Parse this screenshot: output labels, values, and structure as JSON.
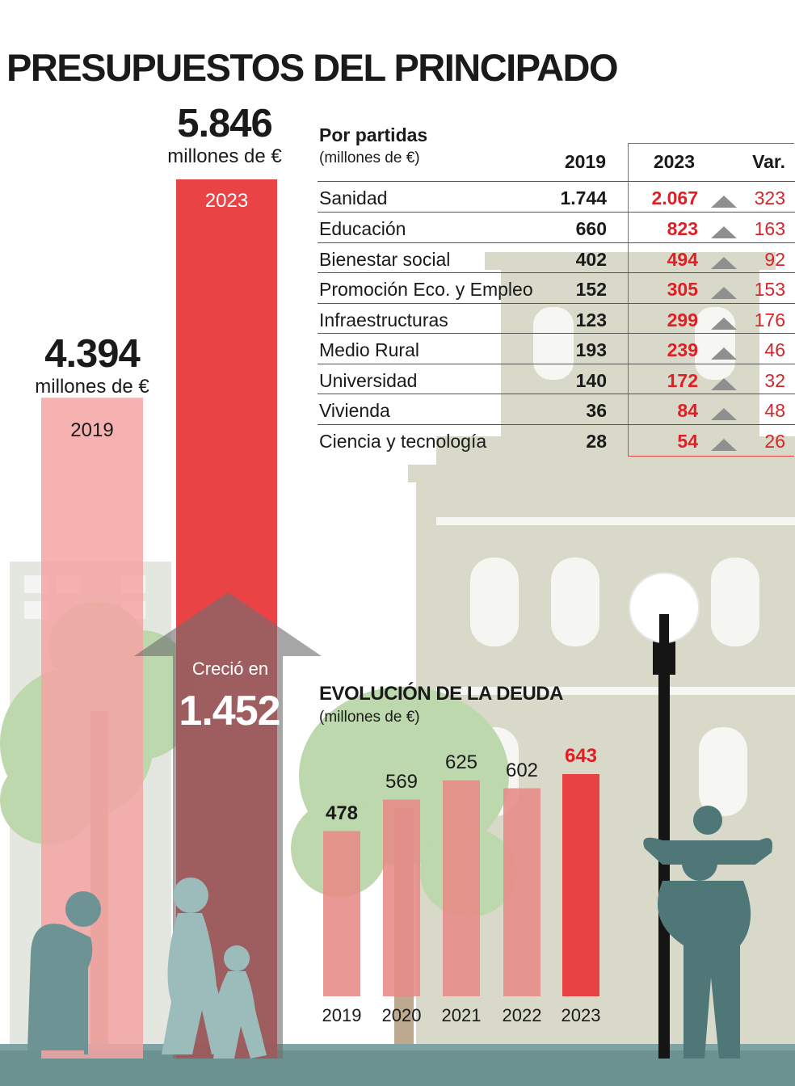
{
  "title": "PRESUPUESTOS DEL PRINCIPADO",
  "totals": {
    "unit": "millones de €",
    "y2019": {
      "value": "4.394",
      "year": "2019"
    },
    "y2023": {
      "value": "5.846",
      "year": "2023"
    }
  },
  "growth": {
    "label": "Creció en",
    "value": "1.452"
  },
  "partidas": {
    "title": "Por partidas",
    "unit": "(millones de €)",
    "columns": [
      "2019",
      "2023",
      "Var."
    ],
    "rows": [
      {
        "name": "Sanidad",
        "v2019": "1.744",
        "v2023": "2.067",
        "var": "323"
      },
      {
        "name": "Educación",
        "v2019": "660",
        "v2023": "823",
        "var": "163"
      },
      {
        "name": "Bienestar social",
        "v2019": "402",
        "v2023": "494",
        "var": "92"
      },
      {
        "name": "Promoción Eco. y Empleo",
        "v2019": "152",
        "v2023": "305",
        "var": "153"
      },
      {
        "name": "Infraestructuras",
        "v2019": "123",
        "v2023": "299",
        "var": "176"
      },
      {
        "name": "Medio Rural",
        "v2019": "193",
        "v2023": "239",
        "var": "46"
      },
      {
        "name": "Universidad",
        "v2019": "140",
        "v2023": "172",
        "var": "32"
      },
      {
        "name": "Vivienda",
        "v2019": "36",
        "v2023": "84",
        "var": "48"
      },
      {
        "name": "Ciencia y tecnología",
        "v2019": "28",
        "v2023": "54",
        "var": "26"
      }
    ]
  },
  "deuda": {
    "title": "EVOLUCIÓN DE LA DEUDA",
    "unit": "(millones de €)"
  },
  "colors": {
    "red": "#e8393b",
    "pink": "#f4a3a3",
    "debt_bar": "#e78a86",
    "highlight_text": "#e01e24",
    "arrow_gray": "#8f8f8f",
    "building": "#d4d4c4",
    "tree": "#b8d6a6",
    "figure": "#6f9293"
  },
  "chart_data": [
    {
      "type": "bar",
      "title": "PRESUPUESTOS DEL PRINCIPADO",
      "categories": [
        "2019",
        "2023"
      ],
      "values": [
        4394,
        5846
      ],
      "unit": "millones de €",
      "difference": 1452
    },
    {
      "type": "table",
      "title": "Por partidas",
      "columns": [
        "2019",
        "2023",
        "Var."
      ],
      "categories": [
        "Sanidad",
        "Educación",
        "Bienestar social",
        "Promoción Eco. y Empleo",
        "Infraestructuras",
        "Medio Rural",
        "Universidad",
        "Vivienda",
        "Ciencia y tecnología"
      ],
      "series": [
        {
          "name": "2019",
          "values": [
            1744,
            660,
            402,
            152,
            123,
            193,
            140,
            36,
            28
          ]
        },
        {
          "name": "2023",
          "values": [
            2067,
            823,
            494,
            305,
            299,
            239,
            172,
            84,
            54
          ]
        },
        {
          "name": "Var.",
          "values": [
            323,
            163,
            92,
            153,
            176,
            46,
            32,
            48,
            26
          ]
        }
      ]
    },
    {
      "type": "bar",
      "title": "EVOLUCIÓN DE LA DEUDA",
      "ylabel": "(millones de €)",
      "categories": [
        "2019",
        "2020",
        "2021",
        "2022",
        "2023"
      ],
      "values": [
        478,
        569,
        625,
        602,
        643
      ],
      "labels": [
        "478",
        "569",
        "625",
        "602",
        "643"
      ]
    }
  ]
}
